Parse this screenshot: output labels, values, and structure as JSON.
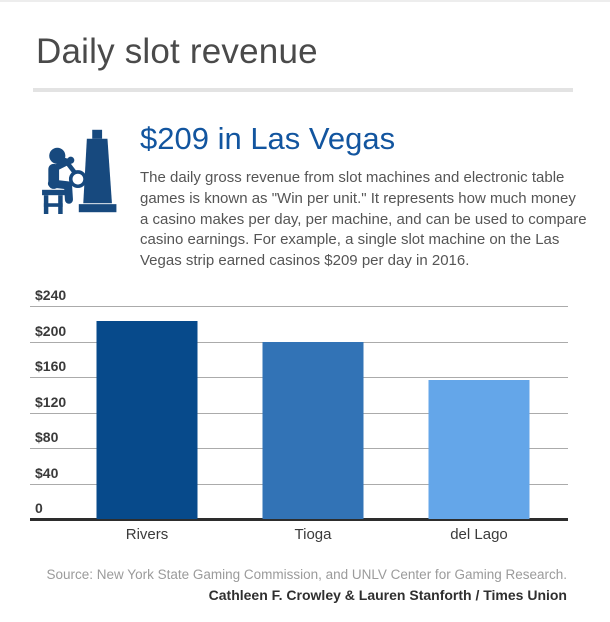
{
  "page": {
    "title": "Daily slot revenue",
    "headline": "$209 in Las Vegas",
    "description": "The daily gross revenue from slot machines and electronic table games is known as \"Win per unit.\" It represents how much money a casino makes per day, per machine, and can be used to compare casino earnings. For example, a single slot machine on the Las Vegas strip earned casinos $209 per day in 2016.",
    "source_line": "Source: New York State Gaming Commission, and UNLV Center for Gaming Research.",
    "byline": "Cathleen F. Crowley & Lauren Stanforth / Times Union",
    "icon": "slot-machine-player-icon"
  },
  "colors": {
    "headline_blue": "#12559f",
    "icon_navy": "#17497e",
    "title_gray": "#4a4a4a",
    "gridline_gray": "#ababab",
    "axis_dark": "#2d2d2d"
  },
  "chart_data": {
    "type": "bar",
    "title": "Daily slot revenue",
    "categories": [
      "Rivers",
      "Tioga",
      "del Lago"
    ],
    "values": [
      223,
      199,
      157
    ],
    "bar_colors": [
      "#074a8b",
      "#3273b6",
      "#64a6e9"
    ],
    "xlabel": "",
    "ylabel": "",
    "ylim": [
      0,
      240
    ],
    "yticks": [
      240,
      200,
      160,
      120,
      80,
      40,
      0
    ],
    "ytick_labels": [
      "$240",
      "$200",
      "$160",
      "$120",
      "$80",
      "$40",
      "0"
    ],
    "grid": true,
    "legend": "none"
  }
}
